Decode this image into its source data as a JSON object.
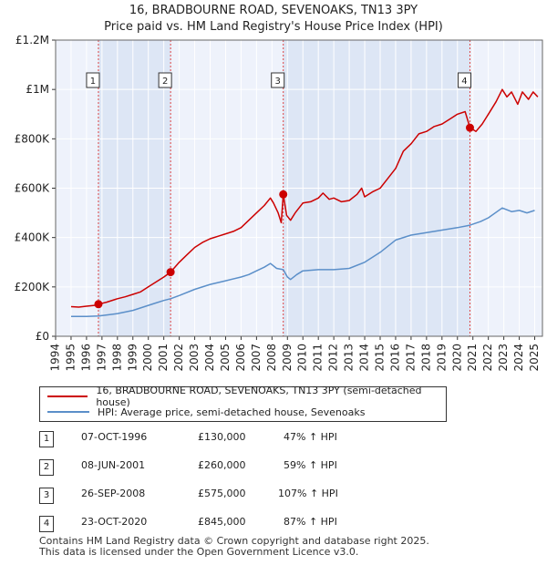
{
  "chart_data": {
    "type": "line",
    "title": "16, BRADBOURNE ROAD, SEVENOAKS, TN13 3PY",
    "subtitle": "Price paid vs. HM Land Registry's House Price Index (HPI)",
    "xlabel": "",
    "ylabel": "",
    "xlim": [
      1994,
      2025.5
    ],
    "ylim": [
      0,
      1200000
    ],
    "x_ticks": [
      1994,
      1995,
      1996,
      1997,
      1998,
      1999,
      2000,
      2001,
      2002,
      2003,
      2004,
      2005,
      2006,
      2007,
      2008,
      2009,
      2010,
      2011,
      2012,
      2013,
      2014,
      2015,
      2016,
      2017,
      2018,
      2019,
      2020,
      2021,
      2022,
      2023,
      2024,
      2025
    ],
    "y_ticks": [
      {
        "value": 0,
        "label": "£0"
      },
      {
        "value": 200000,
        "label": "£200K"
      },
      {
        "value": 400000,
        "label": "£400K"
      },
      {
        "value": 600000,
        "label": "£600K"
      },
      {
        "value": 800000,
        "label": "£800K"
      },
      {
        "value": 1000000,
        "label": "£1M"
      },
      {
        "value": 1200000,
        "label": "£1.2M"
      }
    ],
    "series": [
      {
        "name": "16, BRADBOURNE ROAD, SEVENOAKS, TN13 3PY (semi-detached house)",
        "color": "#cc0000",
        "points": [
          [
            1995.0,
            120000
          ],
          [
            1995.5,
            118000
          ],
          [
            1996.0,
            122000
          ],
          [
            1996.5,
            125000
          ],
          [
            1996.77,
            130000
          ],
          [
            1997.3,
            138000
          ],
          [
            1998.0,
            152000
          ],
          [
            1998.5,
            160000
          ],
          [
            1999.0,
            170000
          ],
          [
            1999.5,
            180000
          ],
          [
            2000.0,
            200000
          ],
          [
            2000.5,
            220000
          ],
          [
            2001.0,
            240000
          ],
          [
            2001.44,
            260000
          ],
          [
            2002.0,
            300000
          ],
          [
            2002.5,
            330000
          ],
          [
            2003.0,
            360000
          ],
          [
            2003.5,
            380000
          ],
          [
            2004.0,
            395000
          ],
          [
            2004.5,
            405000
          ],
          [
            2005.0,
            415000
          ],
          [
            2005.5,
            425000
          ],
          [
            2006.0,
            440000
          ],
          [
            2006.5,
            470000
          ],
          [
            2007.0,
            500000
          ],
          [
            2007.5,
            530000
          ],
          [
            2007.9,
            560000
          ],
          [
            2008.1,
            540000
          ],
          [
            2008.4,
            500000
          ],
          [
            2008.6,
            460000
          ],
          [
            2008.73,
            575000
          ],
          [
            2008.95,
            490000
          ],
          [
            2009.2,
            470000
          ],
          [
            2009.5,
            500000
          ],
          [
            2010.0,
            540000
          ],
          [
            2010.5,
            545000
          ],
          [
            2011.0,
            560000
          ],
          [
            2011.3,
            580000
          ],
          [
            2011.7,
            555000
          ],
          [
            2012.0,
            560000
          ],
          [
            2012.5,
            545000
          ],
          [
            2013.0,
            550000
          ],
          [
            2013.5,
            575000
          ],
          [
            2013.8,
            600000
          ],
          [
            2014.0,
            565000
          ],
          [
            2014.5,
            585000
          ],
          [
            2015.0,
            600000
          ],
          [
            2015.5,
            640000
          ],
          [
            2016.0,
            680000
          ],
          [
            2016.5,
            750000
          ],
          [
            2017.0,
            780000
          ],
          [
            2017.5,
            820000
          ],
          [
            2018.0,
            830000
          ],
          [
            2018.5,
            850000
          ],
          [
            2019.0,
            860000
          ],
          [
            2019.5,
            880000
          ],
          [
            2020.0,
            900000
          ],
          [
            2020.5,
            910000
          ],
          [
            2020.81,
            845000
          ],
          [
            2021.2,
            830000
          ],
          [
            2021.6,
            860000
          ],
          [
            2022.0,
            900000
          ],
          [
            2022.5,
            950000
          ],
          [
            2022.9,
            1000000
          ],
          [
            2023.2,
            970000
          ],
          [
            2023.5,
            990000
          ],
          [
            2023.9,
            940000
          ],
          [
            2024.2,
            990000
          ],
          [
            2024.6,
            960000
          ],
          [
            2024.9,
            990000
          ],
          [
            2025.2,
            970000
          ]
        ]
      },
      {
        "name": "HPI: Average price, semi-detached house, Sevenoaks",
        "color": "#5b8fc9",
        "points": [
          [
            1995.0,
            80000
          ],
          [
            1996.0,
            80000
          ],
          [
            1996.77,
            82000
          ],
          [
            1997.5,
            88000
          ],
          [
            1998.0,
            92000
          ],
          [
            1999.0,
            105000
          ],
          [
            2000.0,
            125000
          ],
          [
            2000.5,
            135000
          ],
          [
            2001.0,
            145000
          ],
          [
            2001.44,
            152000
          ],
          [
            2002.0,
            165000
          ],
          [
            2003.0,
            190000
          ],
          [
            2004.0,
            210000
          ],
          [
            2005.0,
            225000
          ],
          [
            2006.0,
            240000
          ],
          [
            2006.5,
            250000
          ],
          [
            2007.0,
            265000
          ],
          [
            2007.5,
            280000
          ],
          [
            2007.9,
            295000
          ],
          [
            2008.3,
            275000
          ],
          [
            2008.73,
            270000
          ],
          [
            2009.0,
            240000
          ],
          [
            2009.2,
            230000
          ],
          [
            2009.6,
            250000
          ],
          [
            2010.0,
            265000
          ],
          [
            2011.0,
            270000
          ],
          [
            2012.0,
            270000
          ],
          [
            2013.0,
            275000
          ],
          [
            2014.0,
            300000
          ],
          [
            2015.0,
            340000
          ],
          [
            2016.0,
            390000
          ],
          [
            2017.0,
            410000
          ],
          [
            2018.0,
            420000
          ],
          [
            2019.0,
            430000
          ],
          [
            2020.0,
            440000
          ],
          [
            2020.81,
            450000
          ],
          [
            2021.5,
            465000
          ],
          [
            2022.0,
            480000
          ],
          [
            2022.9,
            520000
          ],
          [
            2023.5,
            505000
          ],
          [
            2024.0,
            510000
          ],
          [
            2024.5,
            500000
          ],
          [
            2025.0,
            510000
          ]
        ]
      }
    ],
    "sales": [
      {
        "num": "1",
        "x": 1996.77,
        "value": 130000
      },
      {
        "num": "2",
        "x": 2001.44,
        "value": 260000
      },
      {
        "num": "3",
        "x": 2008.73,
        "value": 575000
      },
      {
        "num": "4",
        "x": 2020.81,
        "value": 845000
      }
    ],
    "shaded_ranges": [
      [
        1996.77,
        2001.44
      ],
      [
        2008.73,
        2020.81
      ]
    ],
    "shade_color": "#dde6f5",
    "grid": true,
    "legend_position": "bottom"
  },
  "legend": {
    "property_label": "16, BRADBOURNE ROAD, SEVENOAKS, TN13 3PY (semi-detached house)",
    "hpi_label": "HPI: Average price, semi-detached house, Sevenoaks"
  },
  "transactions": [
    {
      "num": "1",
      "date": "07-OCT-1996",
      "price": "£130,000",
      "hpi": "47% ↑ HPI"
    },
    {
      "num": "2",
      "date": "08-JUN-2001",
      "price": "£260,000",
      "hpi": "59% ↑ HPI"
    },
    {
      "num": "3",
      "date": "26-SEP-2008",
      "price": "£575,000",
      "hpi": "107% ↑ HPI"
    },
    {
      "num": "4",
      "date": "23-OCT-2020",
      "price": "£845,000",
      "hpi": "87% ↑ HPI"
    }
  ],
  "footer": {
    "line1": "Contains HM Land Registry data © Crown copyright and database right 2025.",
    "line2": "This data is licensed under the Open Government Licence v3.0."
  },
  "colors": {
    "property": "#cc0000",
    "hpi": "#5b8fc9",
    "grid": "#ffffff",
    "plot_bg": "#eef2fb"
  }
}
